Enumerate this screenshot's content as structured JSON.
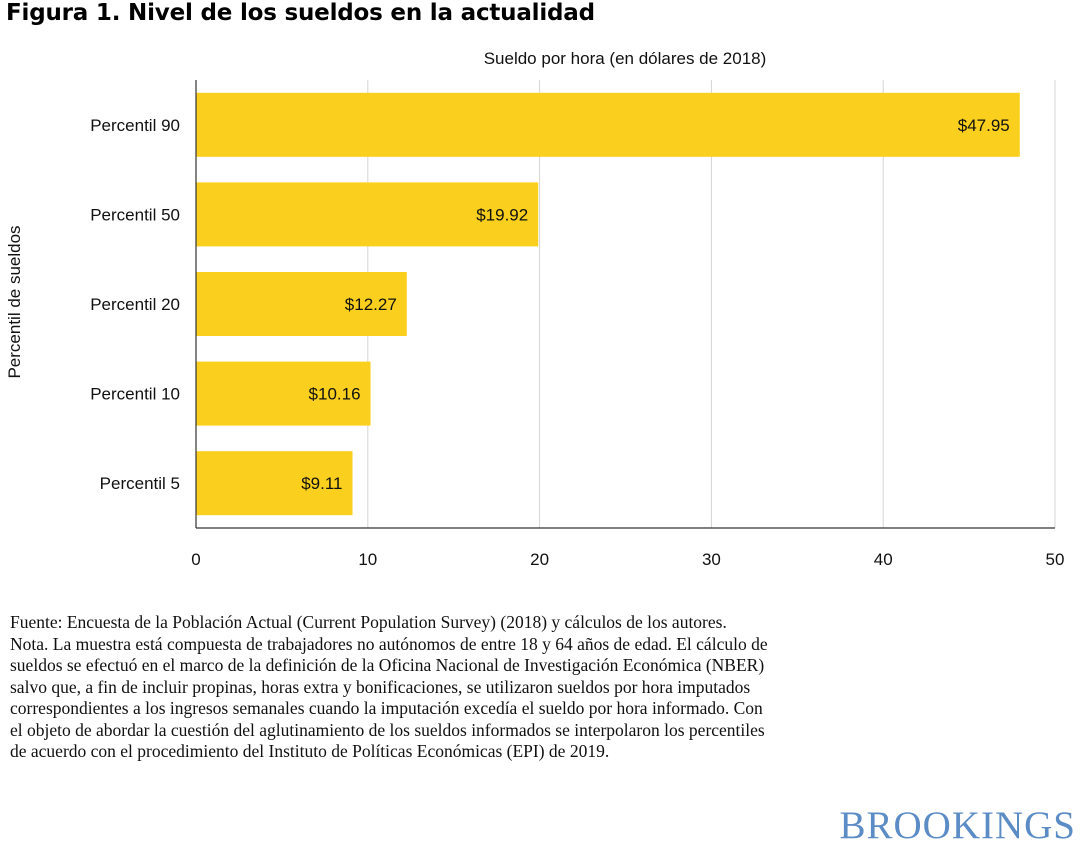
{
  "figure": {
    "title": "Figura 1. Nivel de los sueldos en la actualidad"
  },
  "chart_data": {
    "type": "bar",
    "orientation": "horizontal",
    "title": "Sueldo por hora (en dólares de 2018)",
    "xlabel": "Sueldo por hora (en dólares de 2018)",
    "ylabel": "Percentil de sueldos",
    "categories": [
      "Percentil 90",
      "Percentil 50",
      "Percentil 20",
      "Percentil 10",
      "Percentil 5"
    ],
    "values": [
      47.95,
      19.92,
      12.27,
      10.16,
      9.11
    ],
    "data_labels": [
      "$47.95",
      "$19.92",
      "$12.27",
      "$10.16",
      "$9.11"
    ],
    "xlim": [
      0,
      50
    ],
    "xticks": [
      0,
      10,
      20,
      30,
      40,
      50
    ],
    "grid": "vertical",
    "bar_color": "#fbcf1e",
    "grid_color": "#d4d4d4"
  },
  "notes": {
    "source": "Fuente: Encuesta de la Población Actual (Current Population Survey) (2018) y cálculos de los autores.",
    "note": "Nota. La muestra está compuesta de trabajadores no autónomos de entre 18 y 64 años de edad. El cálculo de sueldos se efectuó en el marco de la definición de la Oficina Nacional de Investigación Económica (NBER) salvo que, a fin de incluir propinas, horas extra y bonificaciones, se utilizaron sueldos por hora imputados correspondientes a los ingresos semanales cuando la imputación excedía el sueldo por hora informado. Con el objeto de abordar la cuestión del aglutinamiento de los sueldos informados se interpolaron los percentiles de acuerdo con el procedimiento del Instituto de Políticas Económicas (EPI) de 2019."
  },
  "brand": {
    "logo_text": "BROOKINGS",
    "logo_color": "#5b8cc6"
  }
}
